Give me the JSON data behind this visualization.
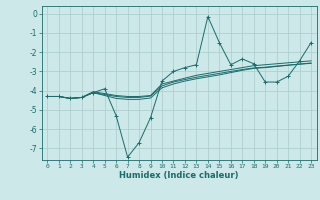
{
  "xlabel": "Humidex (Indice chaleur)",
  "xlim": [
    -0.5,
    23.5
  ],
  "ylim": [
    -7.6,
    0.4
  ],
  "xticks": [
    0,
    1,
    2,
    3,
    4,
    5,
    6,
    7,
    8,
    9,
    10,
    11,
    12,
    13,
    14,
    15,
    16,
    17,
    18,
    19,
    20,
    21,
    22,
    23
  ],
  "yticks": [
    0,
    -1,
    -2,
    -3,
    -4,
    -5,
    -6,
    -7
  ],
  "bg_color": "#cce8e8",
  "grid_color": "#aacccc",
  "line_color": "#1a6b6b",
  "lines": [
    {
      "x": [
        0,
        1,
        2,
        3,
        4,
        5,
        6,
        7,
        8,
        9,
        10,
        11,
        12,
        13,
        14,
        15,
        16,
        17,
        18,
        19,
        20,
        21,
        22,
        23
      ],
      "y": [
        -4.3,
        -4.3,
        -4.4,
        -4.35,
        -4.1,
        -3.9,
        -5.3,
        -7.45,
        -6.7,
        -5.4,
        -3.5,
        -3.0,
        -2.8,
        -2.65,
        -0.15,
        -1.5,
        -2.65,
        -2.35,
        -2.6,
        -3.55,
        -3.55,
        -3.25,
        -2.45,
        -1.5
      ],
      "marker": true
    },
    {
      "x": [
        0,
        1,
        2,
        3,
        4,
        5,
        6,
        7,
        8,
        9,
        10,
        11,
        12,
        13,
        14,
        15,
        16,
        17,
        18,
        19,
        20,
        21,
        22,
        23
      ],
      "y": [
        -4.3,
        -4.3,
        -4.4,
        -4.35,
        -4.05,
        -4.15,
        -4.25,
        -4.3,
        -4.3,
        -4.25,
        -3.65,
        -3.5,
        -3.35,
        -3.2,
        -3.1,
        -3.0,
        -2.9,
        -2.8,
        -2.7,
        -2.65,
        -2.6,
        -2.55,
        -2.5,
        -2.45
      ],
      "marker": false
    },
    {
      "x": [
        0,
        1,
        2,
        3,
        4,
        5,
        6,
        7,
        8,
        9,
        10,
        11,
        12,
        13,
        14,
        15,
        16,
        17,
        18,
        19,
        20,
        21,
        22,
        23
      ],
      "y": [
        -4.3,
        -4.3,
        -4.4,
        -4.35,
        -4.1,
        -4.2,
        -4.3,
        -4.35,
        -4.35,
        -4.28,
        -3.75,
        -3.55,
        -3.42,
        -3.3,
        -3.2,
        -3.1,
        -3.0,
        -2.9,
        -2.82,
        -2.78,
        -2.72,
        -2.67,
        -2.62,
        -2.58
      ],
      "marker": false
    },
    {
      "x": [
        0,
        1,
        2,
        3,
        4,
        5,
        6,
        7,
        8,
        9,
        10,
        11,
        12,
        13,
        14,
        15,
        16,
        17,
        18,
        19,
        20,
        21,
        22,
        23
      ],
      "y": [
        -4.3,
        -4.3,
        -4.4,
        -4.35,
        -4.1,
        -4.25,
        -4.4,
        -4.45,
        -4.45,
        -4.38,
        -3.85,
        -3.65,
        -3.5,
        -3.38,
        -3.28,
        -3.18,
        -3.06,
        -2.94,
        -2.84,
        -2.8,
        -2.74,
        -2.68,
        -2.62,
        -2.56
      ],
      "marker": false
    }
  ]
}
